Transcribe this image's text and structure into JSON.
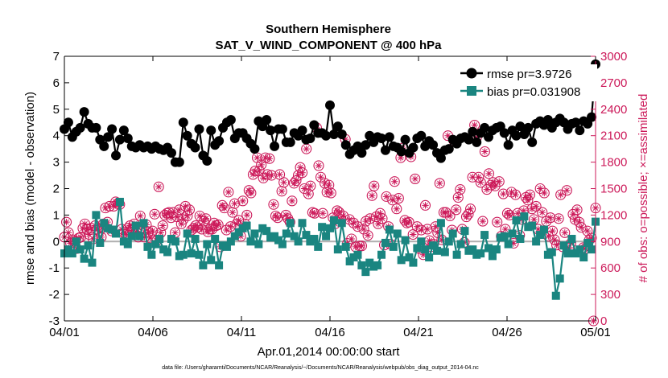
{
  "chart_data": {
    "type": "line",
    "title_line1": "Southern Hemisphere",
    "title_line2": "SAT_V_WIND_COMPONENT @ 400 hPa",
    "xlabel": "Apr.01,2014 00:00:00 start",
    "ylabel_left": "rmse and bias (model - observation)",
    "ylabel_right": "# of obs: o=possible; ×=assimilated",
    "footnote": "data file: /Users/gharamti/Documents/NCAR/Reanalysis/~/Documents/NCAR/Reanalysis/webpub/obs_diag_output_2014-04.nc",
    "x_ticks": [
      "04/01",
      "04/06",
      "04/11",
      "04/16",
      "04/21",
      "04/26",
      "05/01"
    ],
    "x_range_days": [
      0,
      30
    ],
    "ylim_left": [
      -3,
      7
    ],
    "yticks_left": [
      -3,
      -2,
      -1,
      0,
      1,
      2,
      3,
      4,
      5,
      6,
      7
    ],
    "ylim_right": [
      0,
      3000
    ],
    "yticks_right": [
      0,
      300,
      600,
      900,
      1200,
      1500,
      1800,
      2100,
      2400,
      2700,
      3000
    ],
    "colors": {
      "rmse": "#000000",
      "bias": "#1a8580",
      "obs": "#cc1a5a",
      "zero_line": "#b0b0b0",
      "axis": "#000000"
    },
    "legend": {
      "placement": "top-right",
      "rmse_label": "rmse pr=3.9726",
      "bias_label": "bias pr=0.031908"
    },
    "series": [
      {
        "name": "rmse",
        "values": [
          4.25,
          4.5,
          3.95,
          4.15,
          4.3,
          4.9,
          4.45,
          4.3,
          4.3,
          3.85,
          3.6,
          3.95,
          4.25,
          3.25,
          3.85,
          4.2,
          3.9,
          3.6,
          3.55,
          3.65,
          3.55,
          3.6,
          3.5,
          3.6,
          3.5,
          3.45,
          3.55,
          3.35,
          3.0,
          3.0,
          4.5,
          4.0,
          3.7,
          3.55,
          4.25,
          3.25,
          3.05,
          4.2,
          3.65,
          3.8,
          4.3,
          4.5,
          4.6,
          3.9,
          4.1,
          4.1,
          3.9,
          3.7,
          3.5,
          4.55,
          4.35,
          4.6,
          4.2,
          3.6,
          4.25,
          4.25,
          3.75,
          3.75,
          4.1,
          4.0,
          4.2,
          3.85,
          3.9,
          4.4,
          4.1,
          4.1,
          4.0,
          5.15,
          4.05,
          4.35,
          4.05,
          3.65,
          3.3,
          3.45,
          3.6,
          3.35,
          3.65,
          4.0,
          3.75,
          3.95,
          3.9,
          3.45,
          3.95,
          3.6,
          3.55,
          3.4,
          3.85,
          3.35,
          3.55,
          3.9,
          4.0,
          3.6,
          3.8,
          3.65,
          3.35,
          3.15,
          3.45,
          3.5,
          3.85,
          3.7,
          3.9,
          3.95,
          3.85,
          4.15,
          3.75,
          4.1,
          4.3,
          3.95,
          4.2,
          4.3,
          4.35,
          4.1,
          3.65,
          4.2,
          4.0,
          4.35,
          4.05,
          4.3,
          3.75,
          4.45,
          4.55,
          4.4,
          4.6,
          4.3,
          4.5,
          4.65,
          4.5,
          4.25,
          4.45,
          4.5,
          4.2,
          4.55,
          4.45,
          4.7,
          6.7
        ]
      },
      {
        "name": "bias",
        "values": [
          -0.45,
          -0.3,
          -0.45,
          0.0,
          -0.3,
          -0.65,
          -0.15,
          -0.8,
          1.0,
          -0.05,
          0.7,
          0.5,
          0.45,
          0.3,
          1.5,
          0.0,
          -0.1,
          0.2,
          0.6,
          0.2,
          0.7,
          -0.2,
          -0.5,
          -0.1,
          0.1,
          -0.3,
          -0.4,
          0.1,
          0.0,
          -0.55,
          -0.5,
          0.3,
          -0.45,
          0.1,
          -0.5,
          -0.9,
          -0.1,
          -0.7,
          0.1,
          -0.9,
          -0.15,
          -0.2,
          0.0,
          0.2,
          0.35,
          0.5,
          0.6,
          0.0,
          0.3,
          -0.1,
          0.5,
          0.4,
          0.15,
          0.2,
          0.05,
          -0.1,
          0.3,
          0.7,
          0.2,
          0.0,
          0.7,
          0.25,
          0.0,
          0.1,
          -0.2,
          0.55,
          0.2,
          0.5,
          0.8,
          -0.3,
          0.7,
          -0.2,
          -0.75,
          -0.6,
          -0.5,
          -0.9,
          -1.15,
          -0.8,
          -0.95,
          -0.9,
          -0.5,
          -0.05,
          0.45,
          -0.2,
          0.3,
          -0.7,
          0.05,
          -0.6,
          -0.8,
          -0.25,
          0.0,
          -0.3,
          -0.6,
          -0.15,
          -0.35,
          0.7,
          -0.4,
          0.0,
          0.3,
          -0.5,
          -0.1,
          0.4,
          -0.35,
          -0.3,
          -0.5,
          -0.45,
          0.25,
          -0.25,
          -0.55,
          -0.3,
          0.15,
          0.2,
          -0.1,
          0.3,
          0.8,
          0.1,
          0.95,
          0.55,
          0.6,
          0.0,
          0.25,
          0.45,
          -0.5,
          -0.4,
          -2.05,
          -1.4,
          -0.15,
          -0.45,
          0.1,
          -0.45,
          -0.3,
          -0.6,
          -0.05,
          -0.3,
          0.75
        ]
      },
      {
        "name": "obs",
        "values": [
          950,
          1120,
          1000,
          880,
          920,
          900,
          820,
          940,
          950,
          1050,
          1100,
          1040,
          980,
          1050,
          930,
          1080,
          1040,
          1020,
          950,
          1100,
          1280,
          1120,
          1300,
          1020,
          1300,
          1350,
          1330,
          1320,
          1040,
          1000,
          980,
          1050,
          1080,
          1030,
          1100,
          1010,
          950,
          1190,
          1060,
          950,
          1090,
          1010,
          940,
          1020,
          1210,
          910,
          1520,
          1000,
          1080,
          1200,
          1220,
          1230,
          1170,
          1230,
          1000,
          1180,
          1260,
          1100,
          1150,
          1300,
          1190,
          1260,
          1030,
          1050,
          1080,
          1060,
          1190,
          1040,
          1130,
          1160,
          1010,
          1040,
          1040,
          1110,
          1080,
          1090,
          840,
          1310,
          1280,
          1030,
          1460,
          1070,
          1230,
          1330,
          1100,
          1140,
          960,
          1360,
          1100,
          1200,
          1480,
          1450,
          1660,
          1700,
          1850,
          1700,
          1770,
          1620,
          1850,
          1660,
          1840,
          1650,
          1320,
          1190,
          1170,
          1660,
          1470,
          1570,
          1200,
          1160,
          1120,
          1360,
          1560,
          1590,
          1650,
          1740,
          1680,
          1500,
          1950,
          1440,
          1530,
          1230,
          1220,
          2190,
          1760,
          1630,
          1220,
          1560,
          1460,
          1540,
          1450,
          1170,
          1100,
          1250,
          1230,
          1150,
          1190,
          2060,
          880,
          1150,
          930,
          1110,
          840,
          1070,
          850,
          850,
          1040,
          1130,
          970,
          1160,
          1420,
          1530,
          1180,
          1100,
          1220,
          1160,
          860,
          1410,
          1070,
          870,
          1370,
          1580,
          1270,
          1390,
          1850,
          1960,
          1140,
          1110,
          1120,
          1860,
          980,
          1610,
          1070,
          820,
          1030,
          750,
          1310,
          1040,
          910,
          840,
          870,
          1070,
          1000,
          1560,
          920,
          1230,
          1230,
          2100,
          1190,
          1030,
          2040,
          1260,
          1400,
          1490,
          1040,
          890,
          1180,
          1210,
          1270,
          1630,
          2220,
          2080,
          1630,
          1570,
          1130,
          1920,
          1490,
          1670,
          1540,
          1570,
          1530,
          1120,
          1580,
          960,
          1440,
          1040,
          1220,
          1200,
          1460,
          880,
          1430,
          1220,
          970,
          1150,
          1250,
          1400,
          1370,
          1430,
          1270,
          1150,
          1300,
          1040,
          1500,
          1230,
          1450,
          1130,
          960,
          1170,
          1020,
          920,
          860,
          1160,
          1430,
          840,
          1000,
          1480,
          830,
          880,
          1210,
          1150,
          1260,
          1120,
          1060,
          830,
          820,
          1020,
          920,
          940,
          0,
          1280
        ]
      }
    ]
  }
}
